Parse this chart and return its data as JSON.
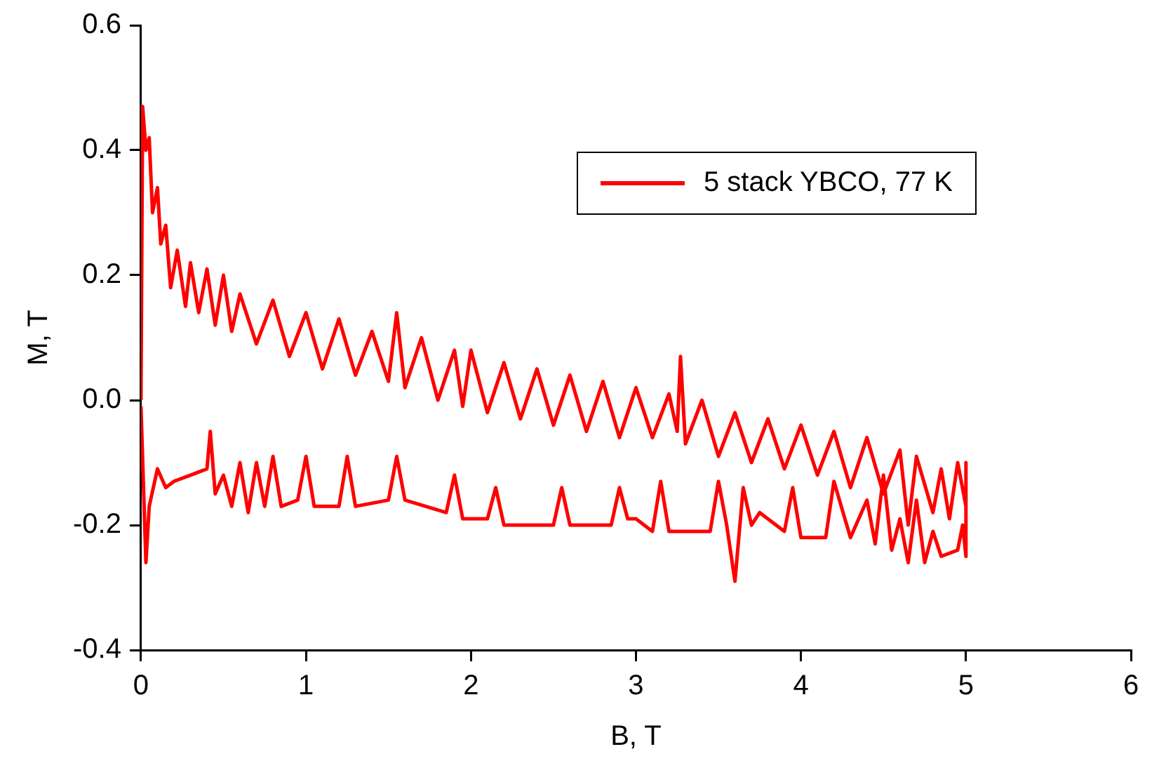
{
  "chart_data": {
    "type": "line",
    "xlabel": "B, T",
    "ylabel": "M, T",
    "xlim": [
      0,
      6
    ],
    "xticks": [
      0,
      1,
      2,
      3,
      4,
      5,
      6
    ],
    "ylim": [
      -0.4,
      0.6
    ],
    "yticks": [
      -0.4,
      -0.2,
      {
        "value": 0,
        "label": "0.0"
      },
      0.2,
      0.4,
      0.6
    ],
    "grid": false,
    "legend": "top right",
    "marker": "none",
    "line_style": "solid",
    "series": [
      {
        "name": "5 stack YBCO, 77 K",
        "color": "#ff0000",
        "x": [
          0,
          0.01,
          0.03,
          0.05,
          0.07,
          0.1,
          0.12,
          0.15,
          0.18,
          0.22,
          0.27,
          0.3,
          0.35,
          0.4,
          0.45,
          0.5,
          0.55,
          0.6,
          0.7,
          0.8,
          0.9,
          1.0,
          1.1,
          1.2,
          1.3,
          1.4,
          1.5,
          1.55,
          1.6,
          1.7,
          1.8,
          1.9,
          1.95,
          2.0,
          2.1,
          2.2,
          2.3,
          2.4,
          2.5,
          2.6,
          2.7,
          2.8,
          2.9,
          3.0,
          3.1,
          3.2,
          3.25,
          3.27,
          3.3,
          3.4,
          3.5,
          3.6,
          3.7,
          3.8,
          3.9,
          4.0,
          4.1,
          4.2,
          4.3,
          4.4,
          4.5,
          4.6,
          4.65,
          4.7,
          4.8,
          4.85,
          4.9,
          4.95,
          5.0,
          5.0,
          5.0,
          4.98,
          4.95,
          4.85,
          4.8,
          4.75,
          4.7,
          4.65,
          4.6,
          4.55,
          4.5,
          4.45,
          4.4,
          4.3,
          4.2,
          4.15,
          4.0,
          3.95,
          3.9,
          3.75,
          3.7,
          3.65,
          3.6,
          3.55,
          3.5,
          3.45,
          3.2,
          3.15,
          3.1,
          3.0,
          2.95,
          2.9,
          2.85,
          2.6,
          2.55,
          2.5,
          2.2,
          2.15,
          2.1,
          1.95,
          1.9,
          1.85,
          1.6,
          1.55,
          1.5,
          1.3,
          1.25,
          1.2,
          1.05,
          1.0,
          0.95,
          0.85,
          0.8,
          0.75,
          0.7,
          0.65,
          0.6,
          0.55,
          0.5,
          0.45,
          0.42,
          0.4,
          0.3,
          0.2,
          0.15,
          0.1,
          0.05,
          0.03,
          0.0
        ],
        "values": [
          0,
          0.47,
          0.4,
          0.42,
          0.3,
          0.34,
          0.25,
          0.28,
          0.18,
          0.24,
          0.15,
          0.22,
          0.14,
          0.21,
          0.12,
          0.2,
          0.11,
          0.17,
          0.09,
          0.16,
          0.07,
          0.14,
          0.05,
          0.13,
          0.04,
          0.11,
          0.03,
          0.14,
          0.02,
          0.1,
          0.0,
          0.08,
          -0.01,
          0.08,
          -0.02,
          0.06,
          -0.03,
          0.05,
          -0.04,
          0.04,
          -0.05,
          0.03,
          -0.06,
          0.02,
          -0.06,
          0.01,
          -0.05,
          0.07,
          -0.07,
          0.0,
          -0.09,
          -0.02,
          -0.1,
          -0.03,
          -0.11,
          -0.04,
          -0.12,
          -0.05,
          -0.14,
          -0.06,
          -0.15,
          -0.08,
          -0.2,
          -0.09,
          -0.18,
          -0.11,
          -0.19,
          -0.1,
          -0.17,
          -0.1,
          -0.25,
          -0.2,
          -0.24,
          -0.25,
          -0.21,
          -0.26,
          -0.16,
          -0.26,
          -0.19,
          -0.24,
          -0.12,
          -0.23,
          -0.16,
          -0.22,
          -0.13,
          -0.22,
          -0.22,
          -0.14,
          -0.21,
          -0.18,
          -0.2,
          -0.14,
          -0.29,
          -0.2,
          -0.13,
          -0.21,
          -0.21,
          -0.13,
          -0.21,
          -0.19,
          -0.19,
          -0.14,
          -0.2,
          -0.2,
          -0.14,
          -0.2,
          -0.2,
          -0.14,
          -0.19,
          -0.19,
          -0.12,
          -0.18,
          -0.16,
          -0.09,
          -0.16,
          -0.17,
          -0.09,
          -0.17,
          -0.17,
          -0.09,
          -0.16,
          -0.17,
          -0.09,
          -0.17,
          -0.1,
          -0.18,
          -0.1,
          -0.17,
          -0.12,
          -0.15,
          -0.05,
          -0.11,
          -0.12,
          -0.13,
          -0.14,
          -0.11,
          -0.17,
          -0.26,
          -0.01
        ]
      }
    ]
  }
}
